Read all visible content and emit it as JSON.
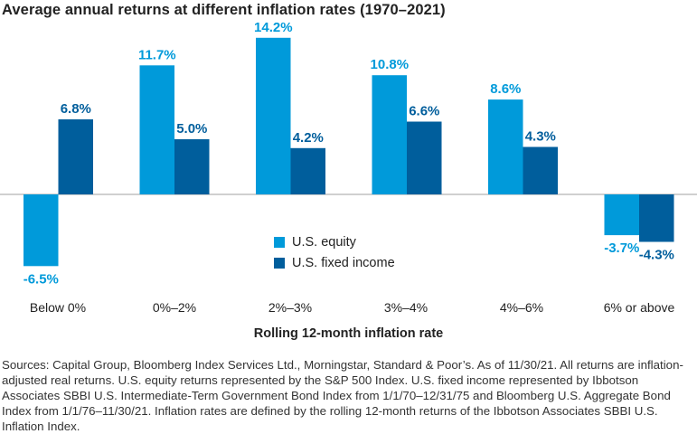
{
  "chart_data": {
    "type": "bar",
    "title": "Average annual returns at different inflation rates (1970–2021)",
    "xlabel": "Rolling 12-month inflation rate",
    "ylabel": "",
    "categories": [
      "Below 0%",
      "0%–2%",
      "2%–3%",
      "3%–4%",
      "4%–6%",
      "6% or above"
    ],
    "series": [
      {
        "name": "U.S. equity",
        "color": "#009ADA",
        "values": [
          -6.5,
          11.7,
          14.2,
          10.8,
          8.6,
          -3.7
        ]
      },
      {
        "name": "U.S. fixed income",
        "color": "#005E9C",
        "values": [
          6.8,
          5.0,
          4.2,
          6.6,
          4.3,
          -4.3
        ]
      }
    ],
    "value_suffix": "%",
    "ylim": [
      -8,
      15
    ],
    "grid": false,
    "legend_position": "center"
  },
  "footnote": "Sources: Capital Group, Bloomberg Index Services Ltd., Morningstar, Standard & Poor’s. As of 11/30/21. All returns are inflation-adjusted real returns. U.S. equity returns represented by the S&P 500 Index. U.S. fixed income represented by Ibbotson Associates SBBI U.S. Intermediate-Term Government Bond Index from 1/1/70–12/31/75 and Bloomberg U.S. Aggregate Bond Index from 1/1/76–11/30/21. Inflation rates are defined by the rolling 12-month returns of the Ibbotson Associates SBBI U.S. Inflation Index."
}
